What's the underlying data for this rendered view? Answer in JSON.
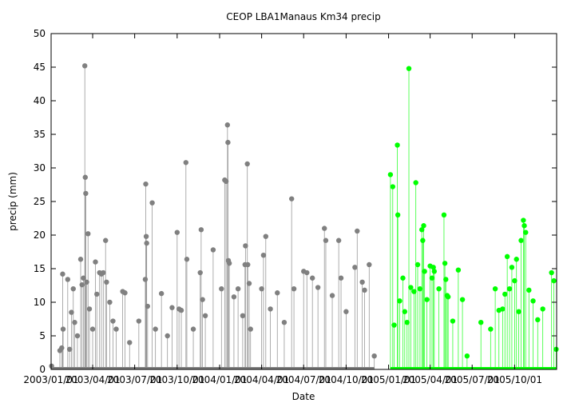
{
  "chart_data": {
    "type": "line",
    "title": "CEOP LBA1Manaus Km34  precip",
    "xlabel": "Date",
    "ylabel": "precip (mm)",
    "ylim": [
      0,
      50
    ],
    "yticks": [
      0,
      5,
      10,
      15,
      20,
      25,
      30,
      35,
      40,
      45,
      50
    ],
    "xlim": [
      "2003-01-01",
      "2005-12-31"
    ],
    "xticks": [
      "2003/01/01",
      "2003/04/01",
      "2003/07/01",
      "2003/10/01",
      "2004/01/01",
      "2004/04/01",
      "2004/07/01",
      "2004/10/01",
      "2005/01/01",
      "2005/04/01",
      "2005/07/01",
      "2005/10/01"
    ],
    "grid": false,
    "series": [
      {
        "color": "#808080",
        "points": [
          [
            "2003-01-02",
            0.5
          ],
          [
            "2003-01-20",
            2.8
          ],
          [
            "2003-01-24",
            3.2
          ],
          [
            "2003-01-26",
            14.2
          ],
          [
            "2003-01-27",
            6.0
          ],
          [
            "2003-02-06",
            13.4
          ],
          [
            "2003-02-10",
            3.0
          ],
          [
            "2003-02-14",
            8.5
          ],
          [
            "2003-02-18",
            12.0
          ],
          [
            "2003-02-21",
            7.0
          ],
          [
            "2003-02-27",
            5.0
          ],
          [
            "2003-03-06",
            16.4
          ],
          [
            "2003-03-09",
            12.6
          ],
          [
            "2003-03-12",
            13.6
          ],
          [
            "2003-03-15",
            45.2
          ],
          [
            "2003-03-16",
            28.6
          ],
          [
            "2003-03-17",
            26.2
          ],
          [
            "2003-03-19",
            13.0
          ],
          [
            "2003-03-22",
            20.2
          ],
          [
            "2003-03-25",
            9.0
          ],
          [
            "2003-04-01",
            6.0
          ],
          [
            "2003-04-07",
            16.0
          ],
          [
            "2003-04-10",
            11.2
          ],
          [
            "2003-04-16",
            14.4
          ],
          [
            "2003-04-20",
            14.2
          ],
          [
            "2003-04-24",
            14.4
          ],
          [
            "2003-04-29",
            19.2
          ],
          [
            "2003-05-01",
            13.0
          ],
          [
            "2003-05-08",
            10.0
          ],
          [
            "2003-05-15",
            7.2
          ],
          [
            "2003-05-22",
            6.0
          ],
          [
            "2003-06-05",
            11.6
          ],
          [
            "2003-06-10",
            11.4
          ],
          [
            "2003-06-20",
            4.0
          ],
          [
            "2003-07-10",
            7.2
          ],
          [
            "2003-07-24",
            13.4
          ],
          [
            "2003-07-25",
            27.6
          ],
          [
            "2003-07-26",
            19.8
          ],
          [
            "2003-07-27",
            18.8
          ],
          [
            "2003-07-29",
            9.4
          ],
          [
            "2003-08-08",
            24.8
          ],
          [
            "2003-08-15",
            6.0
          ],
          [
            "2003-08-28",
            11.3
          ],
          [
            "2003-09-10",
            5.0
          ],
          [
            "2003-09-20",
            9.2
          ],
          [
            "2003-10-01",
            20.4
          ],
          [
            "2003-10-05",
            9.0
          ],
          [
            "2003-10-10",
            8.8
          ],
          [
            "2003-10-20",
            30.8
          ],
          [
            "2003-10-22",
            16.4
          ],
          [
            "2003-11-05",
            6.0
          ],
          [
            "2003-11-20",
            14.4
          ],
          [
            "2003-11-22",
            20.8
          ],
          [
            "2003-11-25",
            10.4
          ],
          [
            "2003-12-01",
            8.0
          ],
          [
            "2003-12-18",
            17.8
          ],
          [
            "2004-01-05",
            12.0
          ],
          [
            "2004-01-12",
            28.2
          ],
          [
            "2004-01-15",
            28.0
          ],
          [
            "2004-01-18",
            36.4
          ],
          [
            "2004-01-19",
            33.8
          ],
          [
            "2004-01-20",
            16.2
          ],
          [
            "2004-01-22",
            15.8
          ],
          [
            "2004-02-01",
            10.8
          ],
          [
            "2004-02-10",
            12.0
          ],
          [
            "2004-02-20",
            8.0
          ],
          [
            "2004-02-25",
            15.6
          ],
          [
            "2004-02-26",
            18.4
          ],
          [
            "2004-03-01",
            30.6
          ],
          [
            "2004-03-02",
            15.6
          ],
          [
            "2004-03-05",
            12.8
          ],
          [
            "2004-03-08",
            6.0
          ],
          [
            "2004-04-01",
            12.0
          ],
          [
            "2004-04-05",
            17.0
          ],
          [
            "2004-04-10",
            19.8
          ],
          [
            "2004-04-20",
            9.0
          ],
          [
            "2004-05-05",
            11.4
          ],
          [
            "2004-05-20",
            7.0
          ],
          [
            "2004-06-05",
            25.4
          ],
          [
            "2004-06-10",
            12.0
          ],
          [
            "2004-07-01",
            14.6
          ],
          [
            "2004-07-08",
            14.4
          ],
          [
            "2004-07-20",
            13.6
          ],
          [
            "2004-08-01",
            12.2
          ],
          [
            "2004-08-15",
            21.0
          ],
          [
            "2004-08-18",
            19.2
          ],
          [
            "2004-09-01",
            11.0
          ],
          [
            "2004-09-15",
            19.2
          ],
          [
            "2004-09-20",
            13.6
          ],
          [
            "2004-10-01",
            8.6
          ],
          [
            "2004-10-20",
            15.2
          ],
          [
            "2004-10-25",
            20.6
          ],
          [
            "2004-11-05",
            13.0
          ],
          [
            "2004-11-10",
            11.8
          ],
          [
            "2004-11-20",
            15.6
          ],
          [
            "2004-12-01",
            2.0
          ]
        ]
      },
      {
        "color": "#00ff00",
        "points": [
          [
            "2005-01-05",
            29.0
          ],
          [
            "2005-01-10",
            27.2
          ],
          [
            "2005-01-13",
            6.6
          ],
          [
            "2005-01-20",
            33.4
          ],
          [
            "2005-01-21",
            23.0
          ],
          [
            "2005-01-25",
            10.2
          ],
          [
            "2005-02-01",
            13.6
          ],
          [
            "2005-02-05",
            8.6
          ],
          [
            "2005-02-10",
            7.0
          ],
          [
            "2005-02-14",
            44.8
          ],
          [
            "2005-02-18",
            12.2
          ],
          [
            "2005-02-25",
            11.6
          ],
          [
            "2005-03-01",
            27.8
          ],
          [
            "2005-03-05",
            15.6
          ],
          [
            "2005-03-10",
            12.0
          ],
          [
            "2005-03-14",
            20.8
          ],
          [
            "2005-03-16",
            19.2
          ],
          [
            "2005-03-18",
            21.4
          ],
          [
            "2005-03-20",
            14.6
          ],
          [
            "2005-03-25",
            10.4
          ],
          [
            "2005-04-01",
            15.4
          ],
          [
            "2005-04-05",
            13.6
          ],
          [
            "2005-04-08",
            15.2
          ],
          [
            "2005-04-10",
            14.6
          ],
          [
            "2005-04-20",
            12.0
          ],
          [
            "2005-05-01",
            23.0
          ],
          [
            "2005-05-03",
            15.8
          ],
          [
            "2005-05-05",
            13.4
          ],
          [
            "2005-05-08",
            11.0
          ],
          [
            "2005-05-10",
            10.8
          ],
          [
            "2005-05-20",
            7.2
          ],
          [
            "2005-06-01",
            14.8
          ],
          [
            "2005-06-10",
            10.4
          ],
          [
            "2005-06-20",
            2.0
          ],
          [
            "2005-07-20",
            7.0
          ],
          [
            "2005-08-10",
            6.0
          ],
          [
            "2005-08-20",
            12.0
          ],
          [
            "2005-08-28",
            8.8
          ],
          [
            "2005-09-05",
            9.0
          ],
          [
            "2005-09-10",
            11.2
          ],
          [
            "2005-09-15",
            16.8
          ],
          [
            "2005-09-20",
            12.0
          ],
          [
            "2005-09-25",
            15.2
          ],
          [
            "2005-10-01",
            13.2
          ],
          [
            "2005-10-05",
            16.4
          ],
          [
            "2005-10-10",
            8.6
          ],
          [
            "2005-10-15",
            19.2
          ],
          [
            "2005-10-20",
            22.2
          ],
          [
            "2005-10-22",
            21.4
          ],
          [
            "2005-10-25",
            20.4
          ],
          [
            "2005-11-01",
            11.8
          ],
          [
            "2005-11-10",
            10.2
          ],
          [
            "2005-11-20",
            7.4
          ],
          [
            "2005-12-01",
            9.0
          ],
          [
            "2005-12-20",
            14.4
          ],
          [
            "2005-12-25",
            13.2
          ],
          [
            "2005-12-30",
            3.0
          ]
        ]
      }
    ]
  }
}
